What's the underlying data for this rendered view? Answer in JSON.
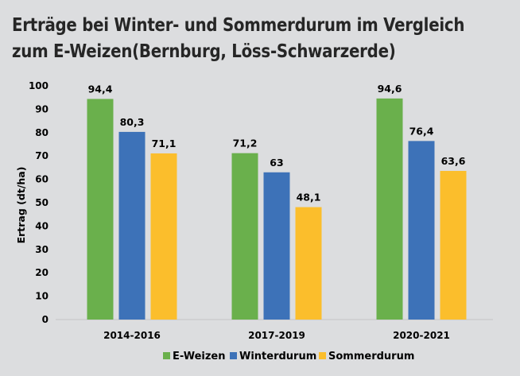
{
  "chart_data": {
    "type": "bar",
    "title_line1": "Erträge bei Winter- und Sommerdurum im Vergleich",
    "title_line2": "zum E-Weizen(Bernburg, Löss-Schwarzerde)",
    "ylabel": "Ertrag (dt/ha)",
    "xlabel": "",
    "ylim": [
      0,
      100
    ],
    "yticks": [
      0,
      10,
      20,
      30,
      40,
      50,
      60,
      70,
      80,
      90,
      100
    ],
    "categories": [
      "2014-2016",
      "2017-2019",
      "2020-2021"
    ],
    "series": [
      {
        "name": "E-Weizen",
        "color": "#6ab04c",
        "values": [
          94.4,
          71.2,
          94.6
        ],
        "labels": [
          "94,4",
          "71,2",
          "94,6"
        ]
      },
      {
        "name": "Winterdurum",
        "color": "#3d72b8",
        "values": [
          80.3,
          63,
          76.4
        ],
        "labels": [
          "80,3",
          "63",
          "76,4"
        ]
      },
      {
        "name": "Sommerdurum",
        "color": "#fbbe2c",
        "values": [
          71.1,
          48.1,
          63.6
        ],
        "labels": [
          "71,1",
          "48,1",
          "63,6"
        ]
      }
    ],
    "grid": false,
    "legend": "bottom-center"
  }
}
